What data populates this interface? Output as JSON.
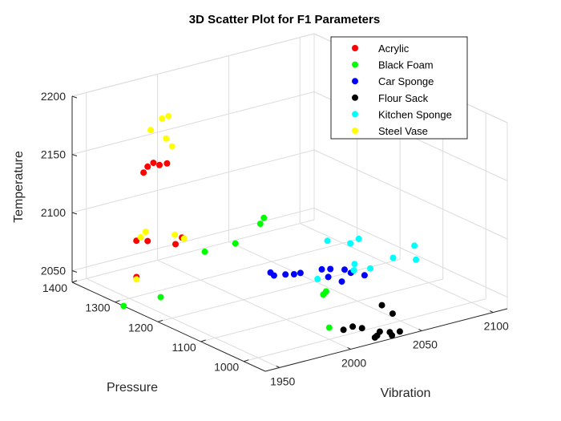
{
  "chart_data": {
    "type": "scatter",
    "title": "3D Scatter Plot for F1 Parameters",
    "xlabel": "Vibration",
    "ylabel": "Pressure",
    "zlabel": "Temperature",
    "xlim": [
      1940,
      2110
    ],
    "ylim": [
      950,
      1400
    ],
    "zlim": [
      2040,
      2200
    ],
    "xticks": [
      1950,
      2000,
      2050,
      2100
    ],
    "yticks": [
      1000,
      1100,
      1200,
      1300,
      1400
    ],
    "zticks": [
      2050,
      2100,
      2150,
      2200
    ],
    "grid": true,
    "legend_position": "top-right",
    "series": [
      {
        "name": "Acrylic",
        "color": "#ff0000",
        "points": [
          [
            1960,
            1300,
            2145
          ],
          [
            1962,
            1297,
            2150
          ],
          [
            1966,
            1297,
            2152
          ],
          [
            1970,
            1296,
            2149
          ],
          [
            1975,
            1295,
            2149
          ],
          [
            1955,
            1300,
            2088
          ],
          [
            1962,
            1297,
            2086
          ],
          [
            1940,
            1250,
            2070
          ],
          [
            1990,
            1310,
            2078
          ],
          [
            1984,
            1305,
            2075
          ]
        ]
      },
      {
        "name": "Black Foam",
        "color": "#00ff00",
        "points": [
          [
            2046,
            1305,
            2078
          ],
          [
            2042,
            1300,
            2075
          ],
          [
            2023,
            1295,
            2065
          ],
          [
            2000,
            1290,
            2066
          ],
          [
            1963,
            1270,
            2042
          ],
          [
            1940,
            1280,
            2040
          ],
          [
            2000,
            1000,
            2050
          ],
          [
            2032,
            1120,
            2048
          ],
          [
            2034,
            1120,
            2050
          ]
        ]
      },
      {
        "name": "Car Sponge",
        "color": "#0000ff",
        "points": [
          [
            2016,
            1190,
            2060
          ],
          [
            2017,
            1185,
            2058
          ],
          [
            2022,
            1175,
            2059
          ],
          [
            2028,
            1160,
            2061
          ],
          [
            2040,
            1150,
            2062
          ],
          [
            2043,
            1140,
            2063
          ],
          [
            2050,
            1130,
            2062
          ],
          [
            2058,
            1110,
            2058
          ],
          [
            2045,
            1120,
            2055
          ],
          [
            2052,
            1122,
            2060
          ],
          [
            2040,
            1135,
            2058
          ],
          [
            2025,
            1165,
            2060
          ]
        ]
      },
      {
        "name": "Flour Sack",
        "color": "#000000",
        "points": [
          [
            2010,
            1000,
            2045
          ],
          [
            2015,
            995,
            2047
          ],
          [
            2020,
            990,
            2045
          ],
          [
            2028,
            975,
            2042
          ],
          [
            2032,
            965,
            2042
          ],
          [
            2032,
            960,
            2040
          ],
          [
            2036,
            955,
            2043
          ],
          [
            2024,
            968,
            2041
          ],
          [
            2020,
            960,
            2042
          ],
          [
            2040,
            985,
            2052
          ],
          [
            2040,
            1010,
            2055
          ]
        ]
      },
      {
        "name": "Kitchen Sponge",
        "color": "#00ffff",
        "points": [
          [
            2050,
            1170,
            2080
          ],
          [
            2060,
            1150,
            2078
          ],
          [
            2066,
            1150,
            2080
          ],
          [
            2090,
            1100,
            2075
          ],
          [
            2072,
            1090,
            2072
          ],
          [
            2085,
            1080,
            2068
          ],
          [
            2065,
            1120,
            2060
          ],
          [
            2058,
            1135,
            2058
          ],
          [
            2040,
            1160,
            2052
          ],
          [
            2060,
            1140,
            2062
          ]
        ]
      },
      {
        "name": "Steel Vase",
        "color": "#ffff00",
        "points": [
          [
            1965,
            1300,
            2180
          ],
          [
            1970,
            1290,
            2190
          ],
          [
            1973,
            1285,
            2192
          ],
          [
            1975,
            1297,
            2170
          ],
          [
            1978,
            1293,
            2163
          ],
          [
            1960,
            1295,
            2095
          ],
          [
            1958,
            1300,
            2090
          ],
          [
            1985,
            1310,
            2082
          ],
          [
            1990,
            1305,
            2078
          ],
          [
            1940,
            1250,
            2068
          ]
        ]
      }
    ]
  }
}
